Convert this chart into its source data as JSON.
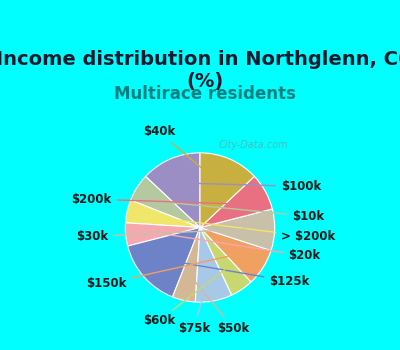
{
  "title": "Income distribution in Northglenn, CO\n(%)",
  "subtitle": "Multirace residents",
  "background_color": "#00FFFF",
  "chart_bg": "#f0f5e8",
  "labels": [
    "$100k",
    "$10k",
    "> $200k",
    "$20k",
    "$125k",
    "$50k",
    "$75k",
    "$60k",
    "$150k",
    "$30k",
    "$200k",
    "$40k"
  ],
  "sizes": [
    13,
    6,
    5,
    5,
    15,
    5,
    8,
    5,
    8,
    9,
    8,
    13
  ],
  "colors": [
    "#9b8ec4",
    "#b5c9a0",
    "#f0e76a",
    "#f5a8b0",
    "#6e82c8",
    "#d4b896",
    "#a8c8e8",
    "#c8d870",
    "#f0a060",
    "#c8c0a8",
    "#e87080",
    "#c8b040"
  ],
  "watermark": "City-Data.com",
  "title_fontsize": 14,
  "subtitle_fontsize": 12,
  "label_fontsize": 8.5
}
